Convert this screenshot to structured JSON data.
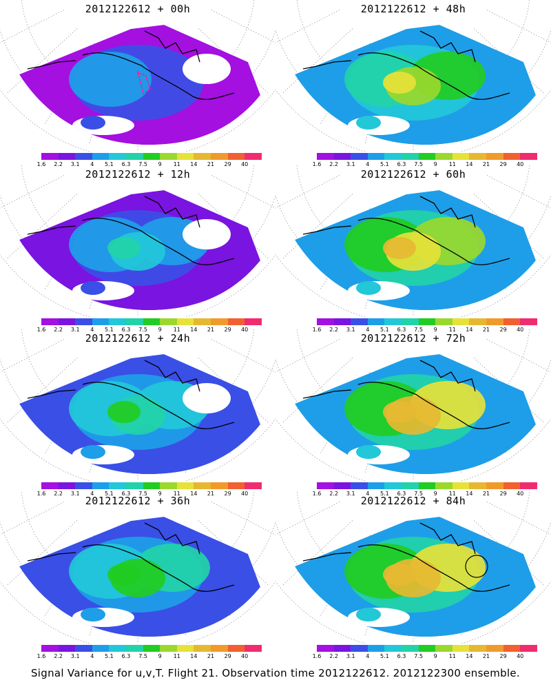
{
  "figure": {
    "caption": "Signal Variance for u,v,T. Flight 21. Observation time 2012122612. 2012122300 ensemble."
  },
  "colorbar": {
    "labels": [
      "1.6",
      "2.2",
      "3.1",
      "4",
      "5.1",
      "6.3",
      "7.5",
      "9",
      "11",
      "14",
      "21",
      "29",
      "40"
    ],
    "colors": [
      "#a310e0",
      "#7a14e0",
      "#3a4fe6",
      "#1e9ee8",
      "#22c8d8",
      "#22d2a8",
      "#22cc22",
      "#9ad82e",
      "#e6e23a",
      "#e6b832",
      "#f09a2c",
      "#f06030",
      "#f02c70"
    ]
  },
  "panels": [
    {
      "title": "2012122612 + 00h",
      "level": 0
    },
    {
      "title": "2012122612 + 48h",
      "level": 4
    },
    {
      "title": "2012122612 + 12h",
      "level": 1
    },
    {
      "title": "2012122612 + 60h",
      "level": 5
    },
    {
      "title": "2012122612 + 24h",
      "level": 2
    },
    {
      "title": "2012122612 + 72h",
      "level": 6
    },
    {
      "title": "2012122612 + 36h",
      "level": 3
    },
    {
      "title": "2012122612 + 84h",
      "level": 7
    }
  ]
}
